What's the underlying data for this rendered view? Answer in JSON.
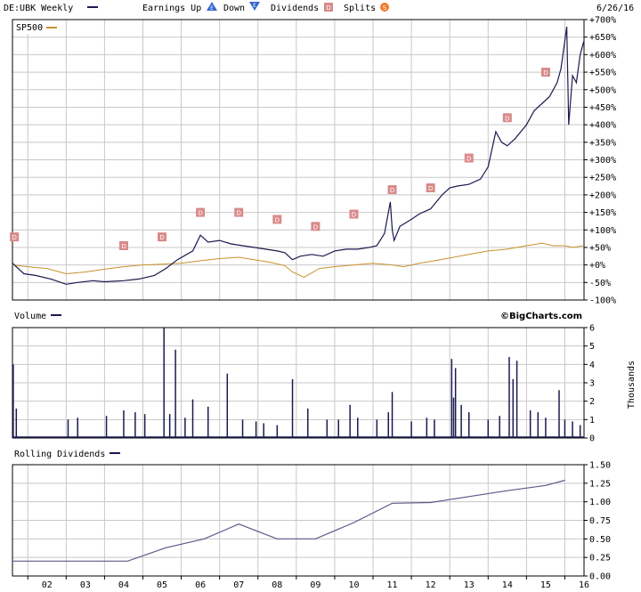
{
  "header": {
    "symbol": "DE:UBK Weekly",
    "earnings_up": "Earnings Up",
    "down": "Down",
    "dividends": "Dividends",
    "splits": "Splits",
    "date": "6/26/16",
    "badge_up": "E",
    "badge_down": "E",
    "badge_div": "D",
    "badge_split": "S"
  },
  "colors": {
    "price": "#1a1a50",
    "sp500": "#c8922a",
    "dividend_marker": "#d98a8a",
    "earnings_up": "#3366cc",
    "earnings_down": "#3366cc",
    "split": "#f07a2a"
  },
  "x_ticks": [
    "02",
    "03",
    "04",
    "05",
    "06",
    "07",
    "08",
    "09",
    "10",
    "11",
    "12",
    "13",
    "14",
    "15",
    "16"
  ],
  "watermark": "©BigCharts.com",
  "chart_data": [
    {
      "type": "line",
      "title": "DE:UBK Weekly",
      "ylabel": "",
      "y_ticks": [
        "+700%",
        "+650%",
        "+600%",
        "+550%",
        "+500%",
        "+450%",
        "+400%",
        "+350%",
        "+300%",
        "+250%",
        "+200%",
        "+150%",
        "+100%",
        "+50%",
        "+0%",
        "-50%",
        "-100%"
      ],
      "ylim": [
        -100,
        700
      ],
      "xlim": [
        2001.6,
        2016.5
      ],
      "series": [
        {
          "name": "DE:UBK",
          "x": [
            2001.6,
            2001.9,
            2002.2,
            2002.6,
            2003.0,
            2003.3,
            2003.7,
            2004.0,
            2004.5,
            2004.9,
            2005.3,
            2005.6,
            2005.9,
            2006.3,
            2006.5,
            2006.7,
            2007.0,
            2007.3,
            2007.6,
            2007.9,
            2008.2,
            2008.5,
            2008.7,
            2008.9,
            2009.1,
            2009.4,
            2009.7,
            2010.0,
            2010.3,
            2010.6,
            2010.9,
            2011.1,
            2011.3,
            2011.45,
            2011.5,
            2011.55,
            2011.7,
            2012.0,
            2012.2,
            2012.5,
            2012.8,
            2013.0,
            2013.2,
            2013.5,
            2013.8,
            2014.0,
            2014.2,
            2014.35,
            2014.5,
            2014.7,
            2015.0,
            2015.2,
            2015.4,
            2015.6,
            2015.8,
            2015.9,
            2016.0,
            2016.05,
            2016.1,
            2016.2,
            2016.3,
            2016.4,
            2016.5
          ],
          "values": [
            5,
            -25,
            -30,
            -40,
            -55,
            -50,
            -45,
            -48,
            -45,
            -40,
            -30,
            -10,
            15,
            40,
            85,
            65,
            70,
            60,
            55,
            50,
            45,
            40,
            35,
            15,
            25,
            30,
            25,
            40,
            45,
            45,
            50,
            55,
            90,
            180,
            100,
            70,
            110,
            130,
            145,
            160,
            200,
            220,
            225,
            230,
            245,
            280,
            380,
            350,
            340,
            360,
            400,
            440,
            460,
            480,
            520,
            560,
            640,
            680,
            400,
            540,
            520,
            600,
            640
          ]
        },
        {
          "name": "SP500",
          "x": [
            2001.6,
            2002.0,
            2002.5,
            2003.0,
            2003.5,
            2004.0,
            2004.5,
            2005.0,
            2005.5,
            2006.0,
            2006.5,
            2007.0,
            2007.5,
            2007.9,
            2008.3,
            2008.7,
            2008.9,
            2009.2,
            2009.6,
            2010.0,
            2010.5,
            2011.0,
            2011.5,
            2011.8,
            2012.2,
            2012.6,
            2013.0,
            2013.5,
            2014.0,
            2014.5,
            2015.0,
            2015.4,
            2015.7,
            2016.0,
            2016.2,
            2016.5
          ],
          "values": [
            0,
            -5,
            -10,
            -25,
            -20,
            -12,
            -5,
            0,
            2,
            5,
            12,
            18,
            22,
            15,
            8,
            -2,
            -20,
            -35,
            -10,
            -5,
            0,
            5,
            0,
            -5,
            5,
            12,
            20,
            30,
            40,
            45,
            55,
            62,
            55,
            55,
            50,
            55
          ]
        }
      ],
      "dividends_at": [
        2001.65,
        2004.5,
        2005.5,
        2006.5,
        2007.5,
        2008.5,
        2009.5,
        2010.5,
        2011.5,
        2012.5,
        2013.5,
        2014.5,
        2015.5
      ],
      "dividends_level": [
        80,
        55,
        80,
        150,
        150,
        130,
        110,
        145,
        215,
        220,
        305,
        420,
        550
      ],
      "legend": [
        "SP500"
      ]
    },
    {
      "type": "bar",
      "title": "Volume",
      "ylabel": "Thousands",
      "y_ticks": [
        "6",
        "5",
        "4",
        "3",
        "2",
        "1",
        "0"
      ],
      "ylim": [
        0,
        6
      ],
      "x": [
        2001.62,
        2001.7,
        2003.05,
        2003.3,
        2004.05,
        2004.5,
        2004.8,
        2005.05,
        2005.55,
        2005.7,
        2005.85,
        2006.1,
        2006.3,
        2006.7,
        2007.2,
        2007.6,
        2007.95,
        2008.15,
        2008.5,
        2008.9,
        2009.3,
        2009.8,
        2010.1,
        2010.4,
        2010.6,
        2011.1,
        2011.4,
        2011.5,
        2012.0,
        2012.4,
        2012.6,
        2013.05,
        2013.1,
        2013.15,
        2013.3,
        2013.5,
        2014.0,
        2014.3,
        2014.55,
        2014.65,
        2014.75,
        2015.1,
        2015.3,
        2015.5,
        2015.85,
        2016.0,
        2016.2,
        2016.4
      ],
      "values": [
        4.0,
        1.6,
        1.0,
        1.1,
        1.2,
        1.5,
        1.4,
        1.3,
        6.0,
        1.3,
        4.8,
        1.1,
        2.1,
        1.7,
        3.5,
        1.0,
        0.9,
        0.8,
        0.7,
        3.2,
        1.6,
        1.0,
        1.0,
        1.8,
        1.1,
        1.0,
        1.4,
        2.5,
        0.9,
        1.1,
        1.0,
        4.3,
        2.2,
        3.8,
        1.8,
        1.4,
        1.0,
        1.2,
        4.4,
        3.2,
        4.2,
        1.5,
        1.4,
        1.1,
        2.6,
        1.0,
        0.9,
        0.7
      ]
    },
    {
      "type": "line",
      "title": "Rolling Dividends",
      "y_ticks": [
        "1.50",
        "1.25",
        "1.00",
        "0.75",
        "0.50",
        "0.25",
        "0.00"
      ],
      "ylim": [
        0,
        1.5
      ],
      "series": [
        {
          "name": "Rolling Dividends",
          "x": [
            2001.6,
            2004.6,
            2005.6,
            2006.6,
            2007.5,
            2008.5,
            2009.5,
            2010.5,
            2011.5,
            2012.5,
            2013.5,
            2014.5,
            2015.5,
            2016.0
          ],
          "values": [
            0.2,
            0.2,
            0.38,
            0.5,
            0.7,
            0.5,
            0.5,
            0.72,
            0.98,
            0.99,
            1.07,
            1.15,
            1.22,
            1.29
          ]
        }
      ]
    }
  ]
}
